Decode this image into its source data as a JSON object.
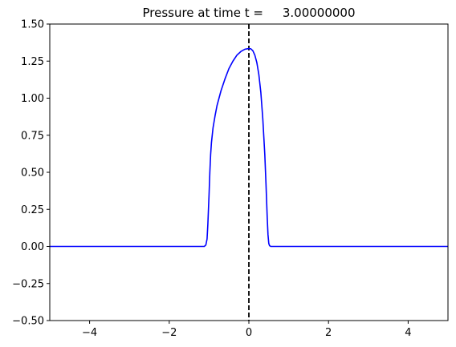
{
  "chart_data": {
    "type": "line",
    "title": "Pressure at time t =     3.00000000",
    "xlabel": "",
    "ylabel": "",
    "xlim": [
      -5,
      5
    ],
    "ylim": [
      -0.5,
      1.5
    ],
    "xticks": [
      -4,
      -2,
      0,
      2,
      4
    ],
    "xtick_labels": [
      "−4",
      "−2",
      "0",
      "2",
      "4"
    ],
    "yticks": [
      -0.5,
      -0.25,
      0.0,
      0.25,
      0.5,
      0.75,
      1.0,
      1.25,
      1.5
    ],
    "ytick_labels": [
      "−0.50",
      "−0.25",
      "0.00",
      "0.25",
      "0.50",
      "0.75",
      "1.00",
      "1.25",
      "1.50"
    ],
    "grid": false,
    "series": [
      {
        "color": "#0000ff",
        "x": [
          -5,
          -1.12,
          -1.08,
          -1.05,
          -1.03,
          -1.0,
          -0.98,
          -0.96,
          -0.94,
          -0.9,
          -0.85,
          -0.8,
          -0.75,
          -0.7,
          -0.6,
          -0.5,
          -0.4,
          -0.3,
          -0.2,
          -0.1,
          0.0,
          0.05,
          0.1,
          0.15,
          0.2,
          0.25,
          0.3,
          0.35,
          0.4,
          0.43,
          0.46,
          0.48,
          0.5,
          0.52,
          0.55,
          0.6,
          5
        ],
        "y": [
          0.0,
          0.0,
          0.01,
          0.05,
          0.15,
          0.35,
          0.5,
          0.62,
          0.7,
          0.8,
          0.88,
          0.95,
          1.0,
          1.05,
          1.13,
          1.2,
          1.25,
          1.29,
          1.315,
          1.33,
          1.335,
          1.333,
          1.32,
          1.29,
          1.24,
          1.16,
          1.04,
          0.86,
          0.62,
          0.42,
          0.2,
          0.08,
          0.02,
          0.005,
          0.0,
          0.0,
          0.0
        ]
      }
    ],
    "reference_line": {
      "x": 0,
      "style": "dashed",
      "color": "#000000"
    }
  }
}
